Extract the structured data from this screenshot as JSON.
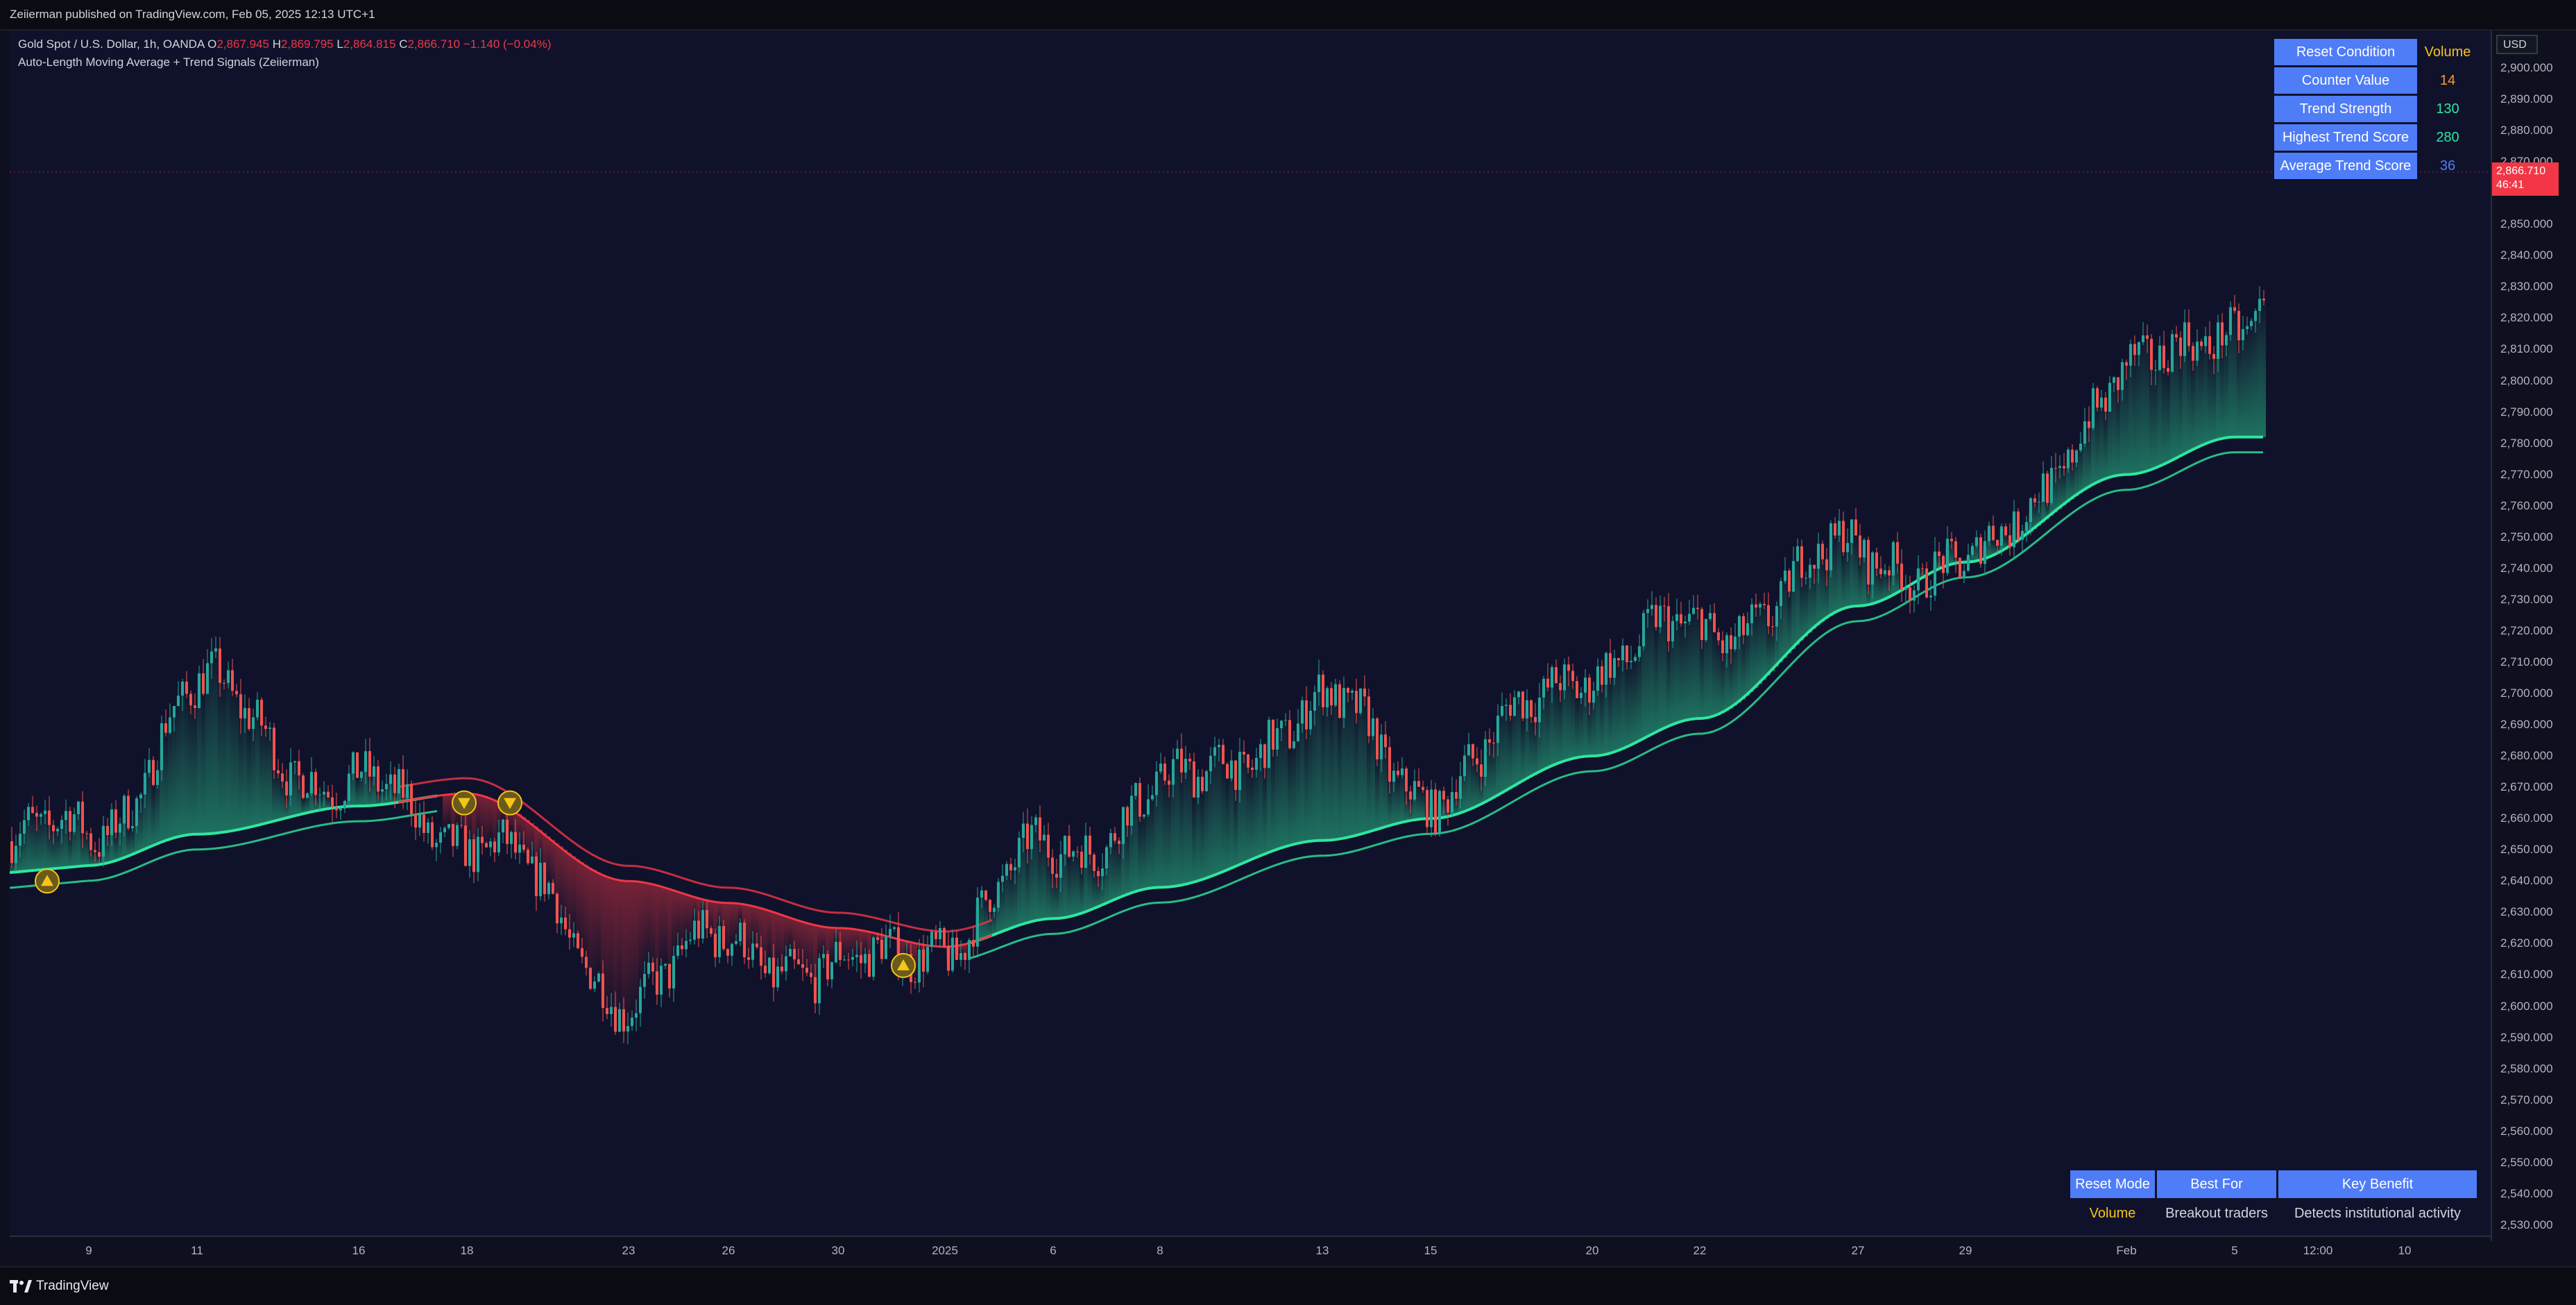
{
  "header": {
    "published": "Zeiierman published on TradingView.com, Feb 05, 2025 12:13 UTC+1"
  },
  "legend": {
    "symbol": "Gold Spot / U.S. Dollar, 1h, OANDA",
    "o_label": "O",
    "o": "2,867.945",
    "h_label": "H",
    "h": "2,869.795",
    "l_label": "L",
    "l": "2,864.815",
    "c_label": "C",
    "c": "2,866.710",
    "change": "−1.140 (−0.04%)",
    "indicator": "Auto-Length Moving Average + Trend Signals (Zeiierman)"
  },
  "price_axis": {
    "currency": "USD",
    "last_price": "2,866.710",
    "countdown": "46:41",
    "ticks": [
      "2,900.000",
      "2,890.000",
      "2,880.000",
      "2,870.000",
      "2,850.000",
      "2,840.000",
      "2,830.000",
      "2,820.000",
      "2,810.000",
      "2,800.000",
      "2,790.000",
      "2,780.000",
      "2,770.000",
      "2,760.000",
      "2,750.000",
      "2,740.000",
      "2,730.000",
      "2,720.000",
      "2,710.000",
      "2,700.000",
      "2,690.000",
      "2,680.000",
      "2,670.000",
      "2,660.000",
      "2,650.000",
      "2,640.000",
      "2,630.000",
      "2,620.000",
      "2,610.000",
      "2,600.000",
      "2,590.000",
      "2,580.000",
      "2,570.000",
      "2,560.000",
      "2,550.000",
      "2,540.000",
      "2,530.000"
    ]
  },
  "time_axis": {
    "ticks": [
      "9",
      "11",
      "16",
      "18",
      "23",
      "26",
      "30",
      "2025",
      "6",
      "8",
      "13",
      "15",
      "20",
      "22",
      "27",
      "29",
      "Feb",
      "5",
      "12:00",
      "10"
    ]
  },
  "stats_table": {
    "rows": [
      {
        "key": "Reset Condition",
        "value": "Volume",
        "color": "#f5c518"
      },
      {
        "key": "Counter Value",
        "value": "14",
        "color": "#ff9a2e"
      },
      {
        "key": "Trend Strength",
        "value": "130",
        "color": "#2ee6a0"
      },
      {
        "key": "Highest Trend Score",
        "value": "280",
        "color": "#2ee6a0"
      },
      {
        "key": "Average Trend Score",
        "value": "36",
        "color": "#4f7cf7"
      }
    ]
  },
  "info_table": {
    "headers": [
      "Reset Mode",
      "Best For",
      "Key Benefit"
    ],
    "values": [
      "Volume",
      "Breakout traders",
      "Detects institutional activity"
    ],
    "first_value_color": "#f5c518"
  },
  "footer": {
    "brand": "TradingView"
  },
  "colors": {
    "bull": "#26a69a",
    "bear": "#ef5350",
    "ma_up": "#2ee6a0",
    "ma_down": "#f23645",
    "signal": "#f5c518"
  },
  "chart_data": {
    "type": "line",
    "title": "",
    "ylim": [
      2530,
      2900
    ],
    "x": [
      "9",
      "11",
      "16",
      "18",
      "23",
      "26",
      "30",
      "2025",
      "6",
      "8",
      "13",
      "15",
      "20",
      "22",
      "27",
      "29",
      "Feb",
      "5",
      "12:00",
      "10"
    ],
    "series": [
      {
        "values": [
          2655,
          2700,
          2668,
          2655,
          2605,
          2620,
          2610,
          2622,
          2650,
          2668,
          2695,
          2670,
          2710,
          2720,
          2745,
          2740,
          2800,
          2820,
          2866.71,
          null
        ]
      },
      {
        "values": [
          2645,
          2655,
          2664,
          2668,
          2640,
          2633,
          2625,
          2619,
          2628,
          2638,
          2653,
          2660,
          2680,
          2692,
          2728,
          2742,
          2770,
          2782,
          null,
          null
        ]
      }
    ],
    "signals": [
      {
        "type": "buy",
        "x": "9",
        "price": 2640
      },
      {
        "type": "sell",
        "x": "18",
        "price": 2665
      },
      {
        "type": "sell",
        "x": "18",
        "price": 2665
      },
      {
        "type": "buy",
        "x": "2025",
        "price": 2613
      }
    ]
  }
}
